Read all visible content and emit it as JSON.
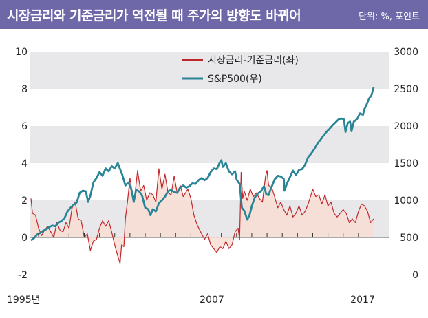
{
  "header": {
    "title": "시장금리와 기준금리가 역전될 때 주가의 방향도 바뀌어",
    "unit": "단위: %, 포인트"
  },
  "chart_data": {
    "type": "line",
    "xlabels": [
      "1995년",
      "2007",
      "2017"
    ],
    "xlim": [
      1995,
      2017.5
    ],
    "left_axis": {
      "ylim": [
        -2,
        10
      ],
      "ticks": [
        "10",
        "8",
        "6",
        "4",
        "2",
        "0",
        "-2"
      ]
    },
    "right_axis": {
      "ylim": [
        0,
        3000
      ],
      "ticks": [
        "3000",
        "2500",
        "2000",
        "1500",
        "1000",
        "500",
        "0"
      ]
    },
    "grid_bands": true,
    "legend_position": "top-center",
    "series": [
      {
        "name": "시장금리-기준금리(좌)",
        "axis": "left",
        "color": "#c0272d",
        "fill": "#f7ddd3",
        "points": [
          [
            1995.0,
            2.1
          ],
          [
            1995.1,
            1.3
          ],
          [
            1995.3,
            1.2
          ],
          [
            1995.5,
            0.5
          ],
          [
            1995.7,
            0.1
          ],
          [
            1995.9,
            0.4
          ],
          [
            1996.1,
            0.6
          ],
          [
            1996.3,
            0.3
          ],
          [
            1996.5,
            0.0
          ],
          [
            1996.7,
            0.8
          ],
          [
            1996.9,
            0.4
          ],
          [
            1997.1,
            0.3
          ],
          [
            1997.3,
            0.8
          ],
          [
            1997.5,
            0.5
          ],
          [
            1997.7,
            1.6
          ],
          [
            1997.9,
            1.9
          ],
          [
            1998.1,
            1.0
          ],
          [
            1998.3,
            0.9
          ],
          [
            1998.5,
            0.0
          ],
          [
            1998.7,
            0.2
          ],
          [
            1998.9,
            -0.7
          ],
          [
            1999.1,
            -0.2
          ],
          [
            1999.3,
            -0.1
          ],
          [
            1999.5,
            0.5
          ],
          [
            1999.7,
            0.9
          ],
          [
            1999.9,
            0.6
          ],
          [
            2000.1,
            0.9
          ],
          [
            2000.3,
            0.3
          ],
          [
            2000.5,
            -0.4
          ],
          [
            2000.7,
            -1.0
          ],
          [
            2000.85,
            -1.4
          ],
          [
            2000.95,
            -0.4
          ],
          [
            2001.1,
            -0.5
          ],
          [
            2001.2,
            1.0
          ],
          [
            2001.35,
            2.0
          ],
          [
            2001.5,
            3.2
          ],
          [
            2001.65,
            2.4
          ],
          [
            2001.8,
            2.1
          ],
          [
            2002.0,
            3.6
          ],
          [
            2002.2,
            2.5
          ],
          [
            2002.4,
            2.8
          ],
          [
            2002.6,
            2.0
          ],
          [
            2002.8,
            2.4
          ],
          [
            2003.0,
            2.3
          ],
          [
            2003.2,
            1.9
          ],
          [
            2003.4,
            3.7
          ],
          [
            2003.6,
            2.6
          ],
          [
            2003.8,
            3.4
          ],
          [
            2004.0,
            2.4
          ],
          [
            2004.2,
            2.3
          ],
          [
            2004.4,
            3.3
          ],
          [
            2004.6,
            2.4
          ],
          [
            2004.8,
            2.8
          ],
          [
            2005.0,
            2.2
          ],
          [
            2005.3,
            2.6
          ],
          [
            2005.5,
            2.1
          ],
          [
            2005.7,
            1.2
          ],
          [
            2005.9,
            0.7
          ],
          [
            2006.2,
            0.2
          ],
          [
            2006.4,
            -0.1
          ],
          [
            2006.6,
            0.2
          ],
          [
            2006.8,
            -0.4
          ],
          [
            2007.0,
            -0.6
          ],
          [
            2007.2,
            -0.8
          ],
          [
            2007.4,
            -0.5
          ],
          [
            2007.6,
            -0.6
          ],
          [
            2007.8,
            -0.2
          ],
          [
            2008.0,
            -0.6
          ],
          [
            2008.2,
            -0.4
          ],
          [
            2008.4,
            0.3
          ],
          [
            2008.6,
            0.5
          ],
          [
            2008.7,
            -0.1
          ],
          [
            2008.8,
            3.5
          ],
          [
            2008.9,
            2.1
          ],
          [
            2009.0,
            2.5
          ],
          [
            2009.2,
            2.0
          ],
          [
            2009.4,
            2.6
          ],
          [
            2009.6,
            2.2
          ],
          [
            2009.8,
            2.4
          ],
          [
            2010.0,
            2.1
          ],
          [
            2010.2,
            1.9
          ],
          [
            2010.4,
            3.3
          ],
          [
            2010.5,
            3.6
          ],
          [
            2010.6,
            2.8
          ],
          [
            2010.8,
            2.7
          ],
          [
            2011.0,
            2.2
          ],
          [
            2011.2,
            1.6
          ],
          [
            2011.4,
            1.9
          ],
          [
            2011.6,
            1.5
          ],
          [
            2011.8,
            1.2
          ],
          [
            2012.0,
            1.7
          ],
          [
            2012.2,
            1.1
          ],
          [
            2012.4,
            1.3
          ],
          [
            2012.6,
            1.7
          ],
          [
            2012.8,
            1.2
          ],
          [
            2013.0,
            1.4
          ],
          [
            2013.2,
            1.8
          ],
          [
            2013.5,
            2.6
          ],
          [
            2013.7,
            2.2
          ],
          [
            2013.9,
            2.3
          ],
          [
            2014.1,
            1.8
          ],
          [
            2014.3,
            2.3
          ],
          [
            2014.5,
            1.7
          ],
          [
            2014.7,
            1.9
          ],
          [
            2014.9,
            1.3
          ],
          [
            2015.1,
            1.1
          ],
          [
            2015.3,
            1.3
          ],
          [
            2015.5,
            1.5
          ],
          [
            2015.7,
            1.3
          ],
          [
            2015.9,
            0.8
          ],
          [
            2016.1,
            1.0
          ],
          [
            2016.3,
            0.8
          ],
          [
            2016.5,
            1.4
          ],
          [
            2016.7,
            1.8
          ],
          [
            2016.9,
            1.7
          ],
          [
            2017.1,
            1.4
          ],
          [
            2017.3,
            0.8
          ],
          [
            2017.5,
            1.0
          ]
        ]
      },
      {
        "name": "S&P500(우)",
        "axis": "right",
        "color": "#2a8596",
        "points": [
          [
            1995.0,
            460
          ],
          [
            1995.2,
            490
          ],
          [
            1995.4,
            540
          ],
          [
            1995.6,
            560
          ],
          [
            1995.8,
            590
          ],
          [
            1996.0,
            610
          ],
          [
            1996.2,
            640
          ],
          [
            1996.4,
            660
          ],
          [
            1996.6,
            650
          ],
          [
            1996.8,
            700
          ],
          [
            1997.0,
            720
          ],
          [
            1997.2,
            760
          ],
          [
            1997.4,
            850
          ],
          [
            1997.6,
            900
          ],
          [
            1997.8,
            940
          ],
          [
            1998.0,
            970
          ],
          [
            1998.2,
            1100
          ],
          [
            1998.4,
            1130
          ],
          [
            1998.6,
            1120
          ],
          [
            1998.75,
            980
          ],
          [
            1998.9,
            1060
          ],
          [
            1999.1,
            1240
          ],
          [
            1999.3,
            1300
          ],
          [
            1999.5,
            1380
          ],
          [
            1999.7,
            1330
          ],
          [
            1999.9,
            1430
          ],
          [
            2000.1,
            1390
          ],
          [
            2000.3,
            1460
          ],
          [
            2000.5,
            1430
          ],
          [
            2000.7,
            1500
          ],
          [
            2000.85,
            1420
          ],
          [
            2001.0,
            1340
          ],
          [
            2001.2,
            1200
          ],
          [
            2001.4,
            1240
          ],
          [
            2001.6,
            1140
          ],
          [
            2001.75,
            980
          ],
          [
            2001.9,
            1140
          ],
          [
            2002.1,
            1120
          ],
          [
            2002.3,
            1060
          ],
          [
            2002.5,
            900
          ],
          [
            2002.7,
            880
          ],
          [
            2002.85,
            800
          ],
          [
            2003.0,
            880
          ],
          [
            2003.2,
            850
          ],
          [
            2003.4,
            960
          ],
          [
            2003.6,
            1000
          ],
          [
            2003.8,
            1050
          ],
          [
            2004.0,
            1120
          ],
          [
            2004.2,
            1140
          ],
          [
            2004.4,
            1110
          ],
          [
            2004.6,
            1100
          ],
          [
            2004.8,
            1170
          ],
          [
            2005.0,
            1200
          ],
          [
            2005.2,
            1170
          ],
          [
            2005.4,
            1190
          ],
          [
            2005.6,
            1230
          ],
          [
            2005.8,
            1220
          ],
          [
            2006.0,
            1270
          ],
          [
            2006.2,
            1300
          ],
          [
            2006.4,
            1270
          ],
          [
            2006.6,
            1300
          ],
          [
            2006.8,
            1380
          ],
          [
            2007.0,
            1430
          ],
          [
            2007.2,
            1420
          ],
          [
            2007.4,
            1510
          ],
          [
            2007.5,
            1540
          ],
          [
            2007.6,
            1450
          ],
          [
            2007.8,
            1500
          ],
          [
            2008.0,
            1390
          ],
          [
            2008.2,
            1350
          ],
          [
            2008.4,
            1390
          ],
          [
            2008.5,
            1280
          ],
          [
            2008.7,
            1220
          ],
          [
            2008.85,
            900
          ],
          [
            2009.0,
            860
          ],
          [
            2009.2,
            740
          ],
          [
            2009.35,
            800
          ],
          [
            2009.5,
            920
          ],
          [
            2009.7,
            1040
          ],
          [
            2009.9,
            1090
          ],
          [
            2010.1,
            1120
          ],
          [
            2010.3,
            1190
          ],
          [
            2010.45,
            1080
          ],
          [
            2010.6,
            1070
          ],
          [
            2010.8,
            1180
          ],
          [
            2011.0,
            1280
          ],
          [
            2011.2,
            1330
          ],
          [
            2011.4,
            1320
          ],
          [
            2011.6,
            1290
          ],
          [
            2011.65,
            1130
          ],
          [
            2011.8,
            1220
          ],
          [
            2012.0,
            1310
          ],
          [
            2012.2,
            1400
          ],
          [
            2012.4,
            1340
          ],
          [
            2012.6,
            1410
          ],
          [
            2012.8,
            1420
          ],
          [
            2013.0,
            1480
          ],
          [
            2013.2,
            1580
          ],
          [
            2013.4,
            1630
          ],
          [
            2013.6,
            1690
          ],
          [
            2013.8,
            1760
          ],
          [
            2014.0,
            1810
          ],
          [
            2014.2,
            1870
          ],
          [
            2014.4,
            1920
          ],
          [
            2014.6,
            1960
          ],
          [
            2014.8,
            2010
          ],
          [
            2015.0,
            2050
          ],
          [
            2015.2,
            2090
          ],
          [
            2015.4,
            2100
          ],
          [
            2015.55,
            2090
          ],
          [
            2015.65,
            1920
          ],
          [
            2015.8,
            2040
          ],
          [
            2015.95,
            2060
          ],
          [
            2016.05,
            1930
          ],
          [
            2016.2,
            2060
          ],
          [
            2016.4,
            2090
          ],
          [
            2016.6,
            2170
          ],
          [
            2016.8,
            2150
          ],
          [
            2016.9,
            2230
          ],
          [
            2017.0,
            2270
          ],
          [
            2017.2,
            2370
          ],
          [
            2017.35,
            2410
          ],
          [
            2017.5,
            2520
          ]
        ]
      }
    ]
  }
}
